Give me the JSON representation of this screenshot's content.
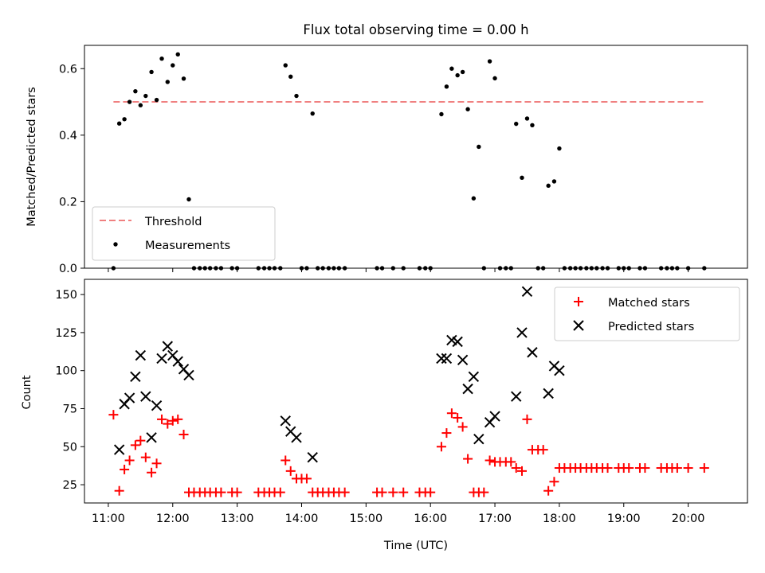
{
  "title": "Flux total observing time = 0.00 h",
  "chart_data": [
    {
      "type": "scatter",
      "panel": "top",
      "ylabel": "Matched/Predicted stars",
      "xlim": [
        10.63,
        20.92
      ],
      "ylim": [
        0,
        0.67
      ],
      "yticks": [
        0.0,
        0.2,
        0.4,
        0.6
      ],
      "ytick_labels": [
        "0.0",
        "0.2",
        "0.4",
        "0.6"
      ],
      "legend_position": "lower-left",
      "threshold": {
        "name": "Threshold",
        "value": 0.5,
        "x_range": [
          11.08,
          20.25
        ],
        "color": "#f08080",
        "style": "dashed"
      },
      "measurements": {
        "name": "Measurements",
        "color": "#000000",
        "points": [
          [
            11.08,
            0.0
          ],
          [
            11.17,
            0.435
          ],
          [
            11.25,
            0.448
          ],
          [
            11.33,
            0.5
          ],
          [
            11.42,
            0.532
          ],
          [
            11.5,
            0.49
          ],
          [
            11.58,
            0.518
          ],
          [
            11.67,
            0.59
          ],
          [
            11.75,
            0.506
          ],
          [
            11.83,
            0.63
          ],
          [
            11.92,
            0.56
          ],
          [
            12.0,
            0.61
          ],
          [
            12.08,
            0.643
          ],
          [
            12.17,
            0.57
          ],
          [
            12.25,
            0.207
          ],
          [
            12.33,
            0.0
          ],
          [
            12.42,
            0.0
          ],
          [
            12.5,
            0.0
          ],
          [
            12.58,
            0.0
          ],
          [
            12.67,
            0.0
          ],
          [
            12.75,
            0.0
          ],
          [
            12.92,
            0.0
          ],
          [
            13.0,
            0.0
          ],
          [
            13.33,
            0.0
          ],
          [
            13.42,
            0.0
          ],
          [
            13.5,
            0.0
          ],
          [
            13.58,
            0.0
          ],
          [
            13.67,
            0.0
          ],
          [
            13.75,
            0.61
          ],
          [
            13.83,
            0.576
          ],
          [
            13.92,
            0.518
          ],
          [
            14.0,
            0.0
          ],
          [
            14.08,
            0.0
          ],
          [
            14.17,
            0.465
          ],
          [
            14.25,
            0.0
          ],
          [
            14.33,
            0.0
          ],
          [
            14.42,
            0.0
          ],
          [
            14.5,
            0.0
          ],
          [
            14.58,
            0.0
          ],
          [
            14.67,
            0.0
          ],
          [
            15.17,
            0.0
          ],
          [
            15.25,
            0.0
          ],
          [
            15.42,
            0.0
          ],
          [
            15.58,
            0.0
          ],
          [
            15.83,
            0.0
          ],
          [
            15.92,
            0.0
          ],
          [
            16.0,
            0.0
          ],
          [
            16.17,
            0.463
          ],
          [
            16.25,
            0.546
          ],
          [
            16.33,
            0.6
          ],
          [
            16.42,
            0.58
          ],
          [
            16.5,
            0.59
          ],
          [
            16.58,
            0.478
          ],
          [
            16.67,
            0.21
          ],
          [
            16.75,
            0.365
          ],
          [
            16.83,
            0.0
          ],
          [
            16.92,
            0.622
          ],
          [
            17.0,
            0.571
          ],
          [
            17.08,
            0.0
          ],
          [
            17.17,
            0.0
          ],
          [
            17.25,
            0.0
          ],
          [
            17.33,
            0.434
          ],
          [
            17.42,
            0.272
          ],
          [
            17.5,
            0.45
          ],
          [
            17.58,
            0.43
          ],
          [
            17.67,
            0.0
          ],
          [
            17.75,
            0.0
          ],
          [
            17.83,
            0.248
          ],
          [
            17.92,
            0.261
          ],
          [
            18.0,
            0.36
          ],
          [
            18.08,
            0.0
          ],
          [
            18.17,
            0.0
          ],
          [
            18.25,
            0.0
          ],
          [
            18.33,
            0.0
          ],
          [
            18.42,
            0.0
          ],
          [
            18.5,
            0.0
          ],
          [
            18.58,
            0.0
          ],
          [
            18.67,
            0.0
          ],
          [
            18.75,
            0.0
          ],
          [
            18.92,
            0.0
          ],
          [
            19.0,
            0.0
          ],
          [
            19.08,
            0.0
          ],
          [
            19.25,
            0.0
          ],
          [
            19.33,
            0.0
          ],
          [
            19.58,
            0.0
          ],
          [
            19.67,
            0.0
          ],
          [
            19.75,
            0.0
          ],
          [
            19.83,
            0.0
          ],
          [
            20.0,
            0.0
          ],
          [
            20.25,
            0.0
          ]
        ]
      }
    },
    {
      "type": "scatter",
      "panel": "bottom",
      "xlabel": "Time (UTC)",
      "ylabel": "Count",
      "xlim": [
        10.63,
        20.92
      ],
      "ylim": [
        13,
        160
      ],
      "yticks": [
        25,
        50,
        75,
        100,
        125,
        150
      ],
      "ytick_labels": [
        "25",
        "50",
        "75",
        "100",
        "125",
        "150"
      ],
      "xticks": [
        11,
        12,
        13,
        14,
        15,
        16,
        17,
        18,
        19,
        20
      ],
      "xtick_labels": [
        "11:00",
        "12:00",
        "13:00",
        "14:00",
        "15:00",
        "16:00",
        "17:00",
        "18:00",
        "19:00",
        "20:00"
      ],
      "legend_position": "upper-right",
      "series": [
        {
          "name": "Matched stars",
          "marker": "plus",
          "color": "#ff0000",
          "points": [
            [
              11.08,
              71
            ],
            [
              11.17,
              21
            ],
            [
              11.25,
              35
            ],
            [
              11.33,
              41
            ],
            [
              11.42,
              51
            ],
            [
              11.5,
              54
            ],
            [
              11.58,
              43
            ],
            [
              11.67,
              33
            ],
            [
              11.75,
              39
            ],
            [
              11.83,
              68
            ],
            [
              11.92,
              65
            ],
            [
              12.0,
              67
            ],
            [
              12.08,
              68
            ],
            [
              12.17,
              58
            ],
            [
              12.25,
              20
            ],
            [
              12.33,
              20
            ],
            [
              12.42,
              20
            ],
            [
              12.5,
              20
            ],
            [
              12.58,
              20
            ],
            [
              12.67,
              20
            ],
            [
              12.75,
              20
            ],
            [
              12.92,
              20
            ],
            [
              13.0,
              20
            ],
            [
              13.33,
              20
            ],
            [
              13.42,
              20
            ],
            [
              13.5,
              20
            ],
            [
              13.58,
              20
            ],
            [
              13.67,
              20
            ],
            [
              13.75,
              41
            ],
            [
              13.83,
              34
            ],
            [
              13.92,
              29
            ],
            [
              14.0,
              29
            ],
            [
              14.08,
              29
            ],
            [
              14.17,
              20
            ],
            [
              14.25,
              20
            ],
            [
              14.33,
              20
            ],
            [
              14.42,
              20
            ],
            [
              14.5,
              20
            ],
            [
              14.58,
              20
            ],
            [
              14.67,
              20
            ],
            [
              15.17,
              20
            ],
            [
              15.25,
              20
            ],
            [
              15.42,
              20
            ],
            [
              15.58,
              20
            ],
            [
              15.83,
              20
            ],
            [
              15.92,
              20
            ],
            [
              16.0,
              20
            ],
            [
              16.17,
              50
            ],
            [
              16.25,
              59
            ],
            [
              16.33,
              72
            ],
            [
              16.42,
              69
            ],
            [
              16.5,
              63
            ],
            [
              16.58,
              42
            ],
            [
              16.67,
              20
            ],
            [
              16.75,
              20
            ],
            [
              16.83,
              20
            ],
            [
              16.92,
              41
            ],
            [
              17.0,
              40
            ],
            [
              17.08,
              40
            ],
            [
              17.17,
              40
            ],
            [
              17.25,
              40
            ],
            [
              17.33,
              36
            ],
            [
              17.42,
              34
            ],
            [
              17.5,
              68
            ],
            [
              17.58,
              48
            ],
            [
              17.67,
              48
            ],
            [
              17.75,
              48
            ],
            [
              17.83,
              21
            ],
            [
              17.92,
              27
            ],
            [
              18.0,
              36
            ],
            [
              18.08,
              36
            ],
            [
              18.17,
              36
            ],
            [
              18.25,
              36
            ],
            [
              18.33,
              36
            ],
            [
              18.42,
              36
            ],
            [
              18.5,
              36
            ],
            [
              18.58,
              36
            ],
            [
              18.67,
              36
            ],
            [
              18.75,
              36
            ],
            [
              18.92,
              36
            ],
            [
              19.0,
              36
            ],
            [
              19.08,
              36
            ],
            [
              19.25,
              36
            ],
            [
              19.33,
              36
            ],
            [
              19.58,
              36
            ],
            [
              19.67,
              36
            ],
            [
              19.75,
              36
            ],
            [
              19.83,
              36
            ],
            [
              20.0,
              36
            ],
            [
              20.25,
              36
            ]
          ]
        },
        {
          "name": "Predicted stars",
          "marker": "x",
          "color": "#000000",
          "points": [
            [
              11.17,
              48
            ],
            [
              11.25,
              78
            ],
            [
              11.33,
              82
            ],
            [
              11.42,
              96
            ],
            [
              11.5,
              110
            ],
            [
              11.58,
              83
            ],
            [
              11.67,
              56
            ],
            [
              11.75,
              77
            ],
            [
              11.83,
              108
            ],
            [
              11.92,
              116
            ],
            [
              12.0,
              110
            ],
            [
              12.08,
              106
            ],
            [
              12.17,
              101
            ],
            [
              12.25,
              97
            ],
            [
              13.75,
              67
            ],
            [
              13.83,
              60
            ],
            [
              13.92,
              56
            ],
            [
              14.17,
              43
            ],
            [
              16.17,
              108
            ],
            [
              16.25,
              108
            ],
            [
              16.33,
              120
            ],
            [
              16.42,
              119
            ],
            [
              16.5,
              107
            ],
            [
              16.58,
              88
            ],
            [
              16.67,
              96
            ],
            [
              16.75,
              55
            ],
            [
              16.92,
              66
            ],
            [
              17.0,
              70
            ],
            [
              17.33,
              83
            ],
            [
              17.42,
              125
            ],
            [
              17.5,
              152
            ],
            [
              17.58,
              112
            ],
            [
              17.83,
              85
            ],
            [
              17.92,
              103
            ],
            [
              18.0,
              100
            ]
          ]
        }
      ]
    }
  ]
}
